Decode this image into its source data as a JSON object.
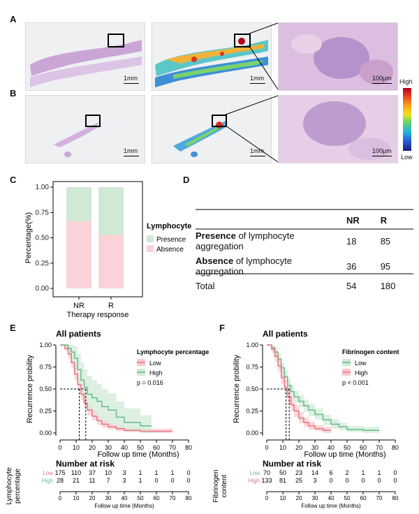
{
  "panel_labels": {
    "a": "A",
    "b": "B",
    "c": "C",
    "d": "D",
    "e": "E",
    "f": "F"
  },
  "panel_ab": {
    "scale_1mm": "1mm",
    "scale_100um": "100μm",
    "colorbar_high": "High",
    "colorbar_low": "Low"
  },
  "panel_d": {
    "col_nr": "NR",
    "col_r": "R",
    "rows": [
      {
        "bold": "Presence",
        "rest": " of lymphocyte aggregation",
        "nr": "18",
        "r": "85"
      },
      {
        "bold": "Absence",
        "rest": " of lymphocyte aggregation",
        "nr": "36",
        "r": "95"
      },
      {
        "bold": "",
        "rest": "Total",
        "nr": "54",
        "r": "180"
      }
    ]
  },
  "chart_data": [
    {
      "id": "C",
      "type": "bar",
      "stacked": true,
      "title": "",
      "xlabel": "Therapy response",
      "ylabel": "Percentage(%)",
      "categories": [
        "NR",
        "R"
      ],
      "ylim": [
        0,
        1
      ],
      "yticks": [
        "0.00",
        "0.25",
        "0.50",
        "0.75",
        "1.00"
      ],
      "legend_title": "Lymphocyte",
      "series": [
        {
          "name": "Absence",
          "color": "#f9d3d9",
          "values": [
            0.667,
            0.528
          ]
        },
        {
          "name": "Presence",
          "color": "#cfe9d4",
          "values": [
            0.333,
            0.472
          ]
        }
      ]
    },
    {
      "id": "E",
      "type": "line",
      "title": "All patients",
      "xlabel": "Follow up time (Months)",
      "ylabel": "Recurrence probility",
      "xticks": [
        "0",
        "10",
        "20",
        "30",
        "40",
        "50",
        "60",
        "70",
        "80"
      ],
      "yticks": [
        "0.00",
        "0.25",
        "0.50",
        "0.75",
        "1.00"
      ],
      "xlim": [
        0,
        80
      ],
      "ylim": [
        0,
        1
      ],
      "legend_title": "Lymphocyte percentage",
      "pvalue": "p = 0.016",
      "medians": [
        12,
        16
      ],
      "series": [
        {
          "name": "Low",
          "color": "#e8757e",
          "ci_color": "#f8c9cd",
          "x": [
            0,
            3,
            5,
            7,
            9,
            11,
            13,
            15,
            17,
            20,
            23,
            26,
            30,
            35,
            40,
            50,
            60,
            70
          ],
          "y": [
            1.0,
            0.96,
            0.9,
            0.8,
            0.67,
            0.55,
            0.44,
            0.34,
            0.26,
            0.19,
            0.14,
            0.1,
            0.07,
            0.05,
            0.03,
            0.02,
            0.02,
            0.02
          ],
          "ci_low": [
            1.0,
            0.93,
            0.85,
            0.74,
            0.6,
            0.48,
            0.37,
            0.28,
            0.2,
            0.14,
            0.09,
            0.06,
            0.04,
            0.02,
            0.01,
            0.0,
            0.0,
            0.0
          ],
          "ci_high": [
            1.0,
            0.99,
            0.95,
            0.86,
            0.74,
            0.62,
            0.51,
            0.41,
            0.32,
            0.25,
            0.19,
            0.15,
            0.11,
            0.08,
            0.06,
            0.05,
            0.05,
            0.05
          ]
        },
        {
          "name": "High",
          "color": "#6bb98a",
          "ci_color": "#cfe9d4",
          "x": [
            0,
            3,
            5,
            7,
            9,
            11,
            13,
            15,
            17,
            20,
            23,
            26,
            30,
            35,
            40,
            50,
            57
          ],
          "y": [
            1.0,
            1.0,
            0.96,
            0.92,
            0.85,
            0.72,
            0.6,
            0.52,
            0.44,
            0.4,
            0.36,
            0.3,
            0.26,
            0.18,
            0.12,
            0.08,
            0.08
          ],
          "ci_low": [
            1.0,
            0.96,
            0.88,
            0.8,
            0.7,
            0.55,
            0.42,
            0.34,
            0.26,
            0.22,
            0.18,
            0.13,
            0.1,
            0.05,
            0.02,
            0.0,
            0.0
          ],
          "ci_high": [
            1.0,
            1.0,
            1.0,
            1.0,
            0.98,
            0.9,
            0.8,
            0.72,
            0.65,
            0.6,
            0.56,
            0.5,
            0.45,
            0.36,
            0.28,
            0.2,
            0.2
          ]
        }
      ],
      "risk_label_lines": [
        "Lymphocyte",
        "percentage"
      ],
      "risk_title": "Number at risk",
      "risk_rows": [
        {
          "name": "Low",
          "color": "#e8757e",
          "values": [
            "175",
            "110",
            "37",
            "10",
            "3",
            "1",
            "1",
            "1",
            "0"
          ]
        },
        {
          "name": "High",
          "color": "#6bb98a",
          "values": [
            "28",
            "21",
            "11",
            "7",
            "3",
            "1",
            "0",
            "0",
            "0"
          ]
        }
      ]
    },
    {
      "id": "F",
      "type": "line",
      "title": "All patients",
      "xlabel": "Follow up time (Months)",
      "ylabel": "Recurrence probility",
      "xticks": [
        "0",
        "10",
        "20",
        "30",
        "40",
        "50",
        "60",
        "70",
        "80"
      ],
      "yticks": [
        "0.00",
        "0.25",
        "0.50",
        "0.75",
        "1.00"
      ],
      "xlim": [
        0,
        80
      ],
      "ylim": [
        0,
        1
      ],
      "legend_title": "Fibrinogen content",
      "pvalue": "p < 0.001",
      "medians": [
        12,
        14
      ],
      "series": [
        {
          "name": "Low",
          "color": "#6bb98a",
          "ci_color": "#cfe9d4",
          "x": [
            0,
            3,
            5,
            7,
            9,
            11,
            13,
            15,
            17,
            20,
            23,
            26,
            30,
            35,
            40,
            45,
            50,
            60,
            70
          ],
          "y": [
            1.0,
            0.97,
            0.92,
            0.84,
            0.74,
            0.64,
            0.54,
            0.47,
            0.41,
            0.36,
            0.31,
            0.26,
            0.21,
            0.15,
            0.1,
            0.07,
            0.04,
            0.03,
            0.03
          ],
          "ci_low": [
            1.0,
            0.94,
            0.87,
            0.78,
            0.68,
            0.57,
            0.47,
            0.4,
            0.34,
            0.29,
            0.24,
            0.19,
            0.15,
            0.09,
            0.05,
            0.03,
            0.01,
            0.0,
            0.0
          ],
          "ci_high": [
            1.0,
            1.0,
            0.97,
            0.9,
            0.8,
            0.71,
            0.61,
            0.54,
            0.48,
            0.43,
            0.38,
            0.33,
            0.28,
            0.21,
            0.16,
            0.12,
            0.08,
            0.07,
            0.07
          ]
        },
        {
          "name": "High",
          "color": "#e8757e",
          "ci_color": "#f8c9cd",
          "x": [
            0,
            3,
            5,
            7,
            9,
            11,
            13,
            15,
            17,
            20,
            23,
            26,
            30,
            35,
            40
          ],
          "y": [
            1.0,
            0.95,
            0.87,
            0.76,
            0.63,
            0.52,
            0.41,
            0.32,
            0.25,
            0.17,
            0.12,
            0.08,
            0.05,
            0.03,
            0.03
          ],
          "ci_low": [
            1.0,
            0.91,
            0.81,
            0.69,
            0.56,
            0.44,
            0.33,
            0.25,
            0.18,
            0.11,
            0.07,
            0.04,
            0.02,
            0.0,
            0.0
          ],
          "ci_high": [
            1.0,
            0.99,
            0.93,
            0.83,
            0.7,
            0.6,
            0.49,
            0.4,
            0.32,
            0.24,
            0.18,
            0.13,
            0.09,
            0.07,
            0.07
          ]
        }
      ],
      "risk_label_lines": [
        "Fibrinogen",
        "content"
      ],
      "risk_title": "Number at risk",
      "risk_rows": [
        {
          "name": "Low",
          "color": "#6bb98a",
          "values": [
            "70",
            "50",
            "23",
            "14",
            "6",
            "2",
            "1",
            "1",
            "0"
          ]
        },
        {
          "name": "High",
          "color": "#e8757e",
          "values": [
            "133",
            "81",
            "25",
            "3",
            "0",
            "0",
            "0",
            "0",
            "0"
          ]
        }
      ]
    }
  ]
}
